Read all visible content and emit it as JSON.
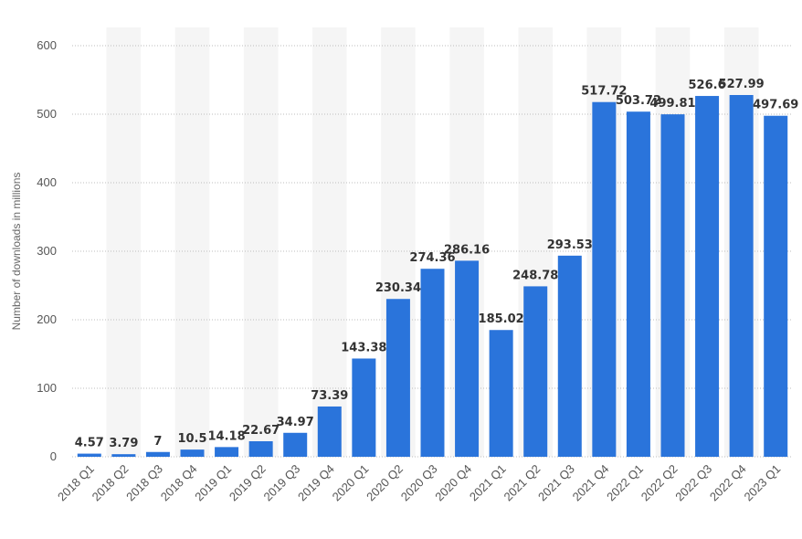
{
  "chart_data": {
    "type": "bar",
    "ylabel": "Number of downloads in millions",
    "xlabel": "",
    "ylim": [
      0,
      600
    ],
    "yticks": [
      0,
      100,
      200,
      300,
      400,
      500,
      600
    ],
    "grid": true,
    "alternating_bands": true,
    "bar_color": "#2a74db",
    "categories": [
      "2018 Q1",
      "2018 Q2",
      "2018 Q3",
      "2018 Q4",
      "2019 Q1",
      "2019 Q2",
      "2019 Q3",
      "2019 Q4",
      "2020 Q1",
      "2020 Q2",
      "2020 Q3",
      "2020 Q4",
      "2021 Q1",
      "2021 Q2",
      "2021 Q3",
      "2021 Q4",
      "2022 Q1",
      "2022 Q2",
      "2022 Q3",
      "2022 Q4",
      "2023 Q1"
    ],
    "values": [
      4.57,
      3.79,
      7,
      10.5,
      14.18,
      22.67,
      34.97,
      73.39,
      143.38,
      230.34,
      274.36,
      286.16,
      185.02,
      248.78,
      293.53,
      517.72,
      503.72,
      499.81,
      526.6,
      527.99,
      497.69
    ],
    "value_labels": [
      "4.57",
      "3.79",
      "7",
      "10.5",
      "14.18",
      "22.67",
      "34.97",
      "73.39",
      "143.38",
      "230.34",
      "274.36",
      "286.16",
      "185.02",
      "248.78",
      "293.53",
      "517.72",
      "503.72",
      "499.81",
      "526.6",
      "527.99",
      "497.69"
    ]
  }
}
